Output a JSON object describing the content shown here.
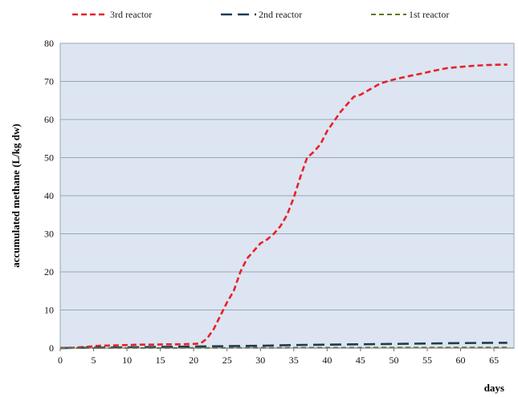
{
  "chart_data": {
    "type": "line",
    "title": "",
    "xlabel": "days",
    "ylabel": "accumulated methane (L/kg dw)",
    "xlim": [
      0,
      68
    ],
    "ylim": [
      0,
      80
    ],
    "xticks": [
      0,
      5,
      10,
      15,
      20,
      25,
      30,
      35,
      40,
      45,
      50,
      55,
      60,
      65
    ],
    "yticks": [
      0,
      10,
      20,
      30,
      40,
      50,
      60,
      70,
      80
    ],
    "grid": true,
    "legend_position": "top",
    "series": [
      {
        "name": "3rd reactor",
        "color": "#e8202a",
        "x": [
          0,
          2,
          4,
          5,
          6,
          8,
          10,
          12,
          14,
          16,
          18,
          20,
          21,
          22,
          23,
          24,
          25,
          26,
          27,
          28,
          29,
          30,
          31,
          32,
          33,
          34,
          35,
          36,
          37,
          38,
          39,
          40,
          41,
          42,
          43,
          44,
          45,
          46,
          47,
          48,
          50,
          52,
          54,
          56,
          58,
          60,
          62,
          64,
          66,
          67
        ],
        "y": [
          0,
          0.1,
          0.3,
          0.5,
          0.6,
          0.7,
          0.8,
          0.9,
          0.9,
          1.0,
          1.0,
          1.1,
          1.2,
          2.5,
          5,
          8.5,
          12,
          15,
          20,
          23.5,
          25.5,
          27.5,
          28.5,
          30,
          32,
          35,
          39.5,
          45,
          50,
          51.5,
          53.5,
          57,
          59.5,
          62,
          64,
          66,
          66.5,
          67.5,
          68.5,
          69.5,
          70.5,
          71.3,
          72,
          72.8,
          73.5,
          73.8,
          74.1,
          74.3,
          74.4,
          74.4
        ]
      },
      {
        "name": "2nd reactor",
        "color": "#1f3a55",
        "x": [
          0,
          5,
          10,
          15,
          20,
          25,
          30,
          35,
          40,
          45,
          50,
          55,
          60,
          65,
          67
        ],
        "y": [
          0,
          0.1,
          0.2,
          0.3,
          0.4,
          0.5,
          0.6,
          0.8,
          0.9,
          1.0,
          1.1,
          1.2,
          1.3,
          1.4,
          1.4
        ]
      },
      {
        "name": "1st reactor",
        "color": "#5c7a1e",
        "x": [
          0,
          10,
          20,
          30,
          40,
          50,
          60,
          67
        ],
        "y": [
          0,
          0.02,
          0.05,
          0.08,
          0.1,
          0.12,
          0.14,
          0.15
        ]
      }
    ]
  }
}
